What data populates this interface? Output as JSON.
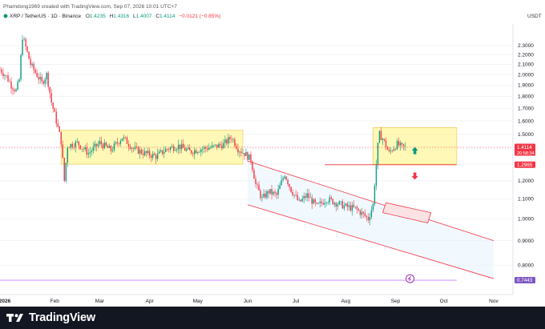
{
  "header": {
    "created_by": "Phamdong1969 created with TradingView.com, Sep 07, 2026 10:01 UTC+7",
    "symbol": "XRP / TetherUS · 1D · Binance",
    "o_label": "O",
    "o": "1.4235",
    "h_label": "H",
    "h": "1.4316",
    "l_label": "L",
    "l": "1.4007",
    "c_label": "C",
    "c": "1.4114",
    "change": "−0.0121 (−0.85%)",
    "quote_currency": "USDT"
  },
  "footer": {
    "brand": "TradingView"
  },
  "colors": {
    "up": "#089981",
    "down": "#f23645",
    "zone": "#fff59d",
    "channel": "#f23645",
    "purple_line": "#c77dff",
    "badge_current": "#f23645",
    "badge_support": "#f23645",
    "badge_low": "#7e57c2"
  },
  "chart_data": {
    "type": "candlestick",
    "symbol": "XRP / TetherUS",
    "interval": "1D",
    "exchange": "Binance",
    "y_axis": {
      "ticks": [
        2.3,
        2.2,
        2.1,
        2.0,
        1.9,
        1.8,
        1.7,
        1.6,
        1.5,
        1.4,
        1.3,
        1.2,
        1.1,
        1.0,
        0.9,
        0.8
      ],
      "tick_labels": [
        "2.3000",
        "2.2000",
        "2.1000",
        "2.0000",
        "1.9000",
        "1.8000",
        "1.7000",
        "1.6000",
        "1.5000",
        "1.4000",
        "1.3000",
        "1.2000",
        "1.1000",
        "1.0000",
        "0.9000",
        "0.8000"
      ],
      "scale": "log",
      "range": [
        0.7,
        2.55
      ]
    },
    "x_axis": {
      "range": [
        "2025-12-29",
        "2026-11-12"
      ],
      "ticks": [
        {
          "date": "2026-01-01",
          "label": "2026",
          "bold": true
        },
        {
          "date": "2026-02-01",
          "label": "Feb"
        },
        {
          "date": "2026-03-01",
          "label": "Mar"
        },
        {
          "date": "2026-04-01",
          "label": "Apr"
        },
        {
          "date": "2026-05-01",
          "label": "May"
        },
        {
          "date": "2026-06-01",
          "label": "Jun"
        },
        {
          "date": "2026-07-01",
          "label": "Jul"
        },
        {
          "date": "2026-08-01",
          "label": "Aug"
        },
        {
          "date": "2026-09-01",
          "label": "Sep"
        },
        {
          "date": "2026-10-01",
          "label": "Oct"
        },
        {
          "date": "2026-11-01",
          "label": "Nov"
        }
      ]
    },
    "price_path": [
      [
        "2025-12-29",
        2.05
      ],
      [
        "2026-01-02",
        1.98
      ],
      [
        "2026-01-05",
        1.9
      ],
      [
        "2026-01-08",
        1.85
      ],
      [
        "2026-01-10",
        1.95
      ],
      [
        "2026-01-12",
        2.4
      ],
      [
        "2026-01-14",
        2.28
      ],
      [
        "2026-01-17",
        2.1
      ],
      [
        "2026-01-20",
        2.02
      ],
      [
        "2026-01-24",
        1.92
      ],
      [
        "2026-01-27",
        2.0
      ],
      [
        "2026-01-30",
        1.75
      ],
      [
        "2026-02-02",
        1.6
      ],
      [
        "2026-02-05",
        1.45
      ],
      [
        "2026-02-07",
        1.2
      ],
      [
        "2026-02-09",
        1.42
      ],
      [
        "2026-02-15",
        1.44
      ],
      [
        "2026-02-22",
        1.37
      ],
      [
        "2026-03-01",
        1.44
      ],
      [
        "2026-03-08",
        1.39
      ],
      [
        "2026-03-15",
        1.48
      ],
      [
        "2026-03-22",
        1.4
      ],
      [
        "2026-03-29",
        1.37
      ],
      [
        "2026-04-05",
        1.35
      ],
      [
        "2026-04-12",
        1.4
      ],
      [
        "2026-04-19",
        1.42
      ],
      [
        "2026-04-26",
        1.38
      ],
      [
        "2026-05-03",
        1.4
      ],
      [
        "2026-05-10",
        1.41
      ],
      [
        "2026-05-17",
        1.43
      ],
      [
        "2026-05-22",
        1.48
      ],
      [
        "2026-05-26",
        1.4
      ],
      [
        "2026-05-30",
        1.37
      ],
      [
        "2026-06-03",
        1.33
      ],
      [
        "2026-06-06",
        1.18
      ],
      [
        "2026-06-10",
        1.1
      ],
      [
        "2026-06-14",
        1.14
      ],
      [
        "2026-06-19",
        1.12
      ],
      [
        "2026-06-24",
        1.24
      ],
      [
        "2026-06-28",
        1.15
      ],
      [
        "2026-07-03",
        1.08
      ],
      [
        "2026-07-08",
        1.12
      ],
      [
        "2026-07-14",
        1.06
      ],
      [
        "2026-07-20",
        1.1
      ],
      [
        "2026-07-26",
        1.08
      ],
      [
        "2026-08-01",
        1.06
      ],
      [
        "2026-08-07",
        1.05
      ],
      [
        "2026-08-12",
        1.02
      ],
      [
        "2026-08-15",
        1.0
      ],
      [
        "2026-08-18",
        1.07
      ],
      [
        "2026-08-20",
        1.3
      ],
      [
        "2026-08-21",
        1.42
      ],
      [
        "2026-08-22",
        1.5
      ],
      [
        "2026-08-24",
        1.47
      ],
      [
        "2026-08-26",
        1.42
      ],
      [
        "2026-08-28",
        1.37
      ],
      [
        "2026-08-30",
        1.4
      ],
      [
        "2026-09-02",
        1.43
      ],
      [
        "2026-09-05",
        1.41
      ],
      [
        "2026-09-07",
        1.4114
      ]
    ],
    "range_box_1": {
      "from": "2026-02-05",
      "to": "2026-05-29",
      "top": 1.53,
      "bottom": 1.3
    },
    "range_box_2": {
      "from": "2026-08-18",
      "to": "2026-10-09",
      "top": 1.55,
      "bottom": 1.3
    },
    "support_line": {
      "from": "2026-07-19",
      "to": "2026-10-09",
      "price": 1.2965
    },
    "dotted_line": {
      "price": 1.41
    },
    "lower_line": {
      "from": "2025-12-29",
      "to": "2026-10-09",
      "price": 0.7443
    },
    "descending_channel": {
      "upper": [
        [
          "2026-06-01",
          1.32
        ],
        [
          "2026-11-01",
          0.9
        ]
      ],
      "lower": [
        [
          "2026-06-01",
          1.07
        ],
        [
          "2026-11-01",
          0.75
        ]
      ]
    },
    "target_box": [
      [
        "2026-08-26",
        1.08
      ],
      [
        "2026-09-23",
        1.03
      ],
      [
        "2026-09-21",
        0.98
      ],
      [
        "2026-08-24",
        1.03
      ]
    ],
    "up_arrow": {
      "date": "2026-09-13",
      "price": 1.38
    },
    "down_arrow": {
      "date": "2026-09-13",
      "price": 1.235
    },
    "circle_marker": {
      "date": "2026-09-10",
      "price": 0.75
    },
    "price_labels": {
      "current": "1.4114",
      "countdown": "20:58:34",
      "support": "1.2965",
      "low": "0.7443"
    }
  }
}
